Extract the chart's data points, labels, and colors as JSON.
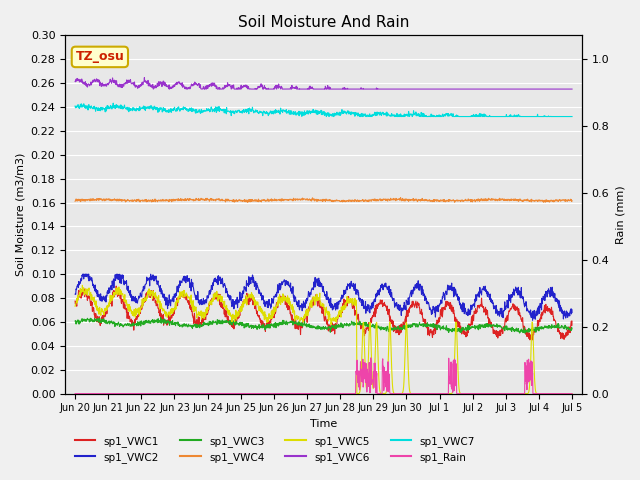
{
  "title": "Soil Moisture And Rain",
  "xlabel": "Time",
  "ylabel_left": "Soil Moisture (m3/m3)",
  "ylabel_right": "Rain (mm)",
  "ylim_left": [
    0.0,
    0.3
  ],
  "ylim_right": [
    0.0,
    1.071
  ],
  "annotation_text": "TZ_osu",
  "annotation_color": "#cc2200",
  "annotation_bg": "#ffffcc",
  "annotation_border": "#ccaa00",
  "background_color": "#e8e8e8",
  "series_colors": {
    "sp1_VWC1": "#dd2222",
    "sp1_VWC2": "#2222cc",
    "sp1_VWC3": "#22aa22",
    "sp1_VWC4": "#ee8833",
    "sp1_VWC5": "#dddd00",
    "sp1_VWC6": "#9933cc",
    "sp1_VWC7": "#00dddd",
    "sp1_Rain": "#ee44aa"
  },
  "n_points": 1500,
  "grid_color": "#ffffff",
  "tick_labels": [
    "Jun 20",
    "Jun 21",
    "Jun 22",
    "Jun 23",
    "Jun 24",
    "Jun 25",
    "Jun 26",
    "Jun 27",
    "Jun 28",
    "Jun 29",
    "Jun 30",
    "Jul 1",
    "Jul 2",
    "Jul 3",
    "Jul 4",
    "Jul 5"
  ],
  "tick_positions": [
    0,
    1,
    2,
    3,
    4,
    5,
    6,
    7,
    8,
    9,
    10,
    11,
    12,
    13,
    14,
    15
  ]
}
